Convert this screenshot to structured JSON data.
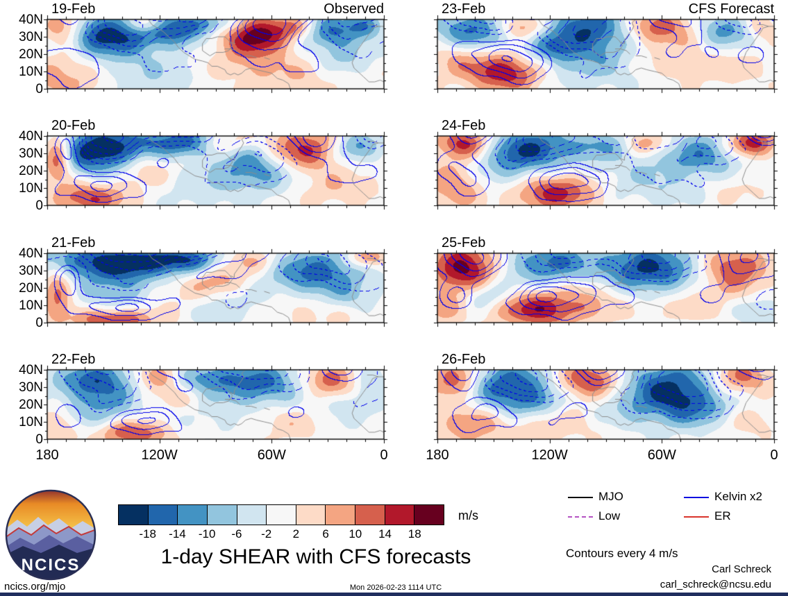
{
  "chart_data": {
    "type": "heatmap",
    "title": "1-day SHEAR with CFS forecasts",
    "columns": [
      "Observed",
      "CFS Forecast"
    ],
    "x_axis": {
      "tick_labels": [
        "180",
        "120W",
        "60W",
        "0"
      ],
      "range_deg_west": [
        180,
        0
      ]
    },
    "y_axis": {
      "tick_labels_top_down": [
        "40N",
        "30N",
        "20N",
        "10N",
        "0"
      ],
      "range_deg_north": [
        0,
        40
      ]
    },
    "colorbar": {
      "levels": [
        -18,
        -14,
        -10,
        -6,
        -2,
        2,
        6,
        10,
        14,
        18
      ],
      "boundary_labels": [
        "-18",
        "-14",
        "-10",
        "-6",
        "-2",
        "2",
        "6",
        "10",
        "14",
        "18"
      ],
      "colors": [
        "#053061",
        "#2166ac",
        "#4393c3",
        "#92c5de",
        "#d1e5f0",
        "#f7f7f7",
        "#fddbc7",
        "#f4a582",
        "#d6604d",
        "#b2182b",
        "#67001f"
      ],
      "unit": "m/s"
    },
    "legend": [
      {
        "label": "MJO",
        "color": "#000000",
        "style": "solid"
      },
      {
        "label": "Kelvin x2",
        "color": "#0a0ae0",
        "style": "solid"
      },
      {
        "label": "Low",
        "color": "#b452c2",
        "style": "dashed"
      },
      {
        "label": "ER",
        "color": "#d9342b",
        "style": "solid"
      }
    ],
    "contour_note": "Contours every 4 m/s",
    "panels": [
      {
        "date": "19-Feb",
        "col": 0,
        "blobs": [
          [
            0.05,
            0.12,
            0.045,
            0.18,
            16
          ],
          [
            0.17,
            0.22,
            0.1,
            0.22,
            -20
          ],
          [
            0.3,
            0.06,
            0.04,
            0.1,
            14
          ],
          [
            0.38,
            0.12,
            0.07,
            0.16,
            -17
          ],
          [
            0.5,
            0.05,
            0.05,
            0.1,
            -8
          ],
          [
            0.62,
            0.22,
            0.07,
            0.18,
            20
          ],
          [
            0.74,
            0.1,
            0.05,
            0.12,
            9
          ],
          [
            0.84,
            0.16,
            0.07,
            0.18,
            -14
          ],
          [
            0.95,
            0.08,
            0.04,
            0.12,
            -10
          ],
          [
            0.05,
            0.82,
            0.08,
            0.25,
            9
          ],
          [
            0.3,
            0.75,
            0.12,
            0.3,
            -5
          ],
          [
            0.6,
            0.6,
            0.1,
            0.2,
            6
          ],
          [
            0.88,
            0.55,
            0.06,
            0.18,
            -7
          ],
          [
            0.75,
            0.85,
            0.12,
            0.2,
            4
          ]
        ]
      },
      {
        "date": "20-Feb",
        "col": 0,
        "blobs": [
          [
            0.03,
            0.3,
            0.03,
            0.25,
            18
          ],
          [
            0.16,
            0.2,
            0.1,
            0.25,
            -22
          ],
          [
            0.4,
            0.08,
            0.08,
            0.14,
            -16
          ],
          [
            0.3,
            0.45,
            0.06,
            0.15,
            8
          ],
          [
            0.52,
            0.1,
            0.05,
            0.12,
            10
          ],
          [
            0.6,
            0.3,
            0.08,
            0.2,
            -8
          ],
          [
            0.75,
            0.2,
            0.08,
            0.22,
            16
          ],
          [
            0.92,
            0.15,
            0.05,
            0.15,
            -12
          ],
          [
            0.12,
            0.9,
            0.07,
            0.15,
            14
          ],
          [
            0.45,
            0.7,
            0.12,
            0.25,
            -5
          ],
          [
            0.65,
            0.55,
            0.08,
            0.2,
            -9
          ],
          [
            0.85,
            0.75,
            0.1,
            0.2,
            5
          ],
          [
            0.25,
            0.7,
            0.08,
            0.2,
            4
          ]
        ]
      },
      {
        "date": "21-Feb",
        "col": 0,
        "blobs": [
          [
            0.2,
            0.12,
            0.16,
            0.18,
            -20
          ],
          [
            0.42,
            0.1,
            0.08,
            0.15,
            -12
          ],
          [
            0.03,
            0.55,
            0.03,
            0.3,
            12
          ],
          [
            0.22,
            0.55,
            0.08,
            0.22,
            -10
          ],
          [
            0.5,
            0.35,
            0.07,
            0.18,
            10
          ],
          [
            0.6,
            0.1,
            0.06,
            0.12,
            8
          ],
          [
            0.8,
            0.28,
            0.1,
            0.25,
            -16
          ],
          [
            0.95,
            0.06,
            0.04,
            0.1,
            12
          ],
          [
            0.2,
            0.95,
            0.08,
            0.12,
            16
          ],
          [
            0.55,
            0.75,
            0.1,
            0.2,
            -6
          ],
          [
            0.75,
            0.8,
            0.12,
            0.2,
            5
          ],
          [
            0.35,
            0.6,
            0.08,
            0.2,
            5
          ],
          [
            0.9,
            0.65,
            0.06,
            0.15,
            -5
          ]
        ]
      },
      {
        "date": "22-Feb",
        "col": 0,
        "blobs": [
          [
            0.15,
            0.15,
            0.09,
            0.2,
            -16
          ],
          [
            0.32,
            0.1,
            0.05,
            0.14,
            12
          ],
          [
            0.46,
            0.12,
            0.06,
            0.15,
            -10
          ],
          [
            0.63,
            0.18,
            0.1,
            0.22,
            -15
          ],
          [
            0.84,
            0.15,
            0.06,
            0.18,
            14
          ],
          [
            0.96,
            0.12,
            0.03,
            0.15,
            -8
          ],
          [
            0.15,
            0.6,
            0.08,
            0.22,
            -9
          ],
          [
            0.03,
            0.8,
            0.04,
            0.2,
            8
          ],
          [
            0.25,
            0.9,
            0.08,
            0.14,
            15
          ],
          [
            0.5,
            0.65,
            0.12,
            0.25,
            -4
          ],
          [
            0.7,
            0.75,
            0.1,
            0.2,
            5
          ],
          [
            0.9,
            0.5,
            0.06,
            0.18,
            -7
          ],
          [
            0.4,
            0.4,
            0.06,
            0.15,
            6
          ]
        ]
      },
      {
        "date": "23-Feb",
        "col": 1,
        "blobs": [
          [
            0.1,
            0.15,
            0.08,
            0.2,
            -15
          ],
          [
            0.25,
            0.1,
            0.05,
            0.12,
            12
          ],
          [
            0.45,
            0.15,
            0.1,
            0.25,
            -18
          ],
          [
            0.65,
            0.12,
            0.08,
            0.18,
            14
          ],
          [
            0.85,
            0.15,
            0.06,
            0.18,
            -12
          ],
          [
            0.96,
            0.1,
            0.03,
            0.12,
            8
          ],
          [
            0.2,
            0.75,
            0.08,
            0.2,
            18
          ],
          [
            0.05,
            0.55,
            0.05,
            0.2,
            6
          ],
          [
            0.45,
            0.7,
            0.12,
            0.25,
            -6
          ],
          [
            0.7,
            0.6,
            0.08,
            0.2,
            5
          ],
          [
            0.88,
            0.7,
            0.08,
            0.18,
            4
          ],
          [
            0.33,
            0.45,
            0.06,
            0.15,
            -8
          ]
        ]
      },
      {
        "date": "24-Feb",
        "col": 1,
        "blobs": [
          [
            0.08,
            0.1,
            0.06,
            0.15,
            16
          ],
          [
            0.28,
            0.18,
            0.1,
            0.22,
            -18
          ],
          [
            0.5,
            0.12,
            0.06,
            0.15,
            -8
          ],
          [
            0.62,
            0.1,
            0.05,
            0.12,
            10
          ],
          [
            0.78,
            0.3,
            0.09,
            0.25,
            -13
          ],
          [
            0.93,
            0.1,
            0.05,
            0.14,
            18
          ],
          [
            0.05,
            0.7,
            0.06,
            0.25,
            10
          ],
          [
            0.35,
            0.8,
            0.1,
            0.2,
            16
          ],
          [
            0.55,
            0.6,
            0.1,
            0.25,
            -5
          ],
          [
            0.2,
            0.55,
            0.07,
            0.2,
            -7
          ],
          [
            0.85,
            0.7,
            0.1,
            0.2,
            4
          ],
          [
            0.7,
            0.8,
            0.08,
            0.15,
            -4
          ]
        ]
      },
      {
        "date": "25-Feb",
        "col": 1,
        "blobs": [
          [
            0.08,
            0.2,
            0.07,
            0.25,
            20
          ],
          [
            0.33,
            0.15,
            0.1,
            0.22,
            -14
          ],
          [
            0.63,
            0.25,
            0.11,
            0.28,
            -19
          ],
          [
            0.88,
            0.2,
            0.07,
            0.22,
            15
          ],
          [
            0.15,
            0.6,
            0.05,
            0.15,
            -9
          ],
          [
            0.3,
            0.8,
            0.09,
            0.18,
            17
          ],
          [
            0.5,
            0.7,
            0.1,
            0.2,
            5
          ],
          [
            0.75,
            0.65,
            0.1,
            0.22,
            6
          ],
          [
            0.95,
            0.85,
            0.05,
            0.15,
            -7
          ],
          [
            0.45,
            0.45,
            0.06,
            0.15,
            5
          ],
          [
            0.02,
            0.8,
            0.04,
            0.15,
            8
          ]
        ]
      },
      {
        "date": "26-Feb",
        "col": 1,
        "blobs": [
          [
            0.05,
            0.15,
            0.05,
            0.2,
            14
          ],
          [
            0.22,
            0.25,
            0.09,
            0.25,
            -18
          ],
          [
            0.45,
            0.15,
            0.07,
            0.18,
            16
          ],
          [
            0.68,
            0.2,
            0.1,
            0.25,
            -16
          ],
          [
            0.9,
            0.12,
            0.06,
            0.18,
            12
          ],
          [
            0.1,
            0.8,
            0.07,
            0.2,
            10
          ],
          [
            0.35,
            0.75,
            0.1,
            0.2,
            6
          ],
          [
            0.75,
            0.55,
            0.09,
            0.22,
            -12
          ],
          [
            0.55,
            0.6,
            0.08,
            0.2,
            -5
          ],
          [
            0.92,
            0.75,
            0.06,
            0.15,
            5
          ],
          [
            0.3,
            0.5,
            0.06,
            0.15,
            -6
          ]
        ]
      }
    ]
  },
  "footer": {
    "site": "ncics.org/mjo",
    "timestamp": "Mon 2026-02-23 1114 UTC",
    "credit_name": "Carl Schreck",
    "credit_email": "carl_schreck@ncsu.edu"
  },
  "logo": {
    "text": "NCICS"
  }
}
